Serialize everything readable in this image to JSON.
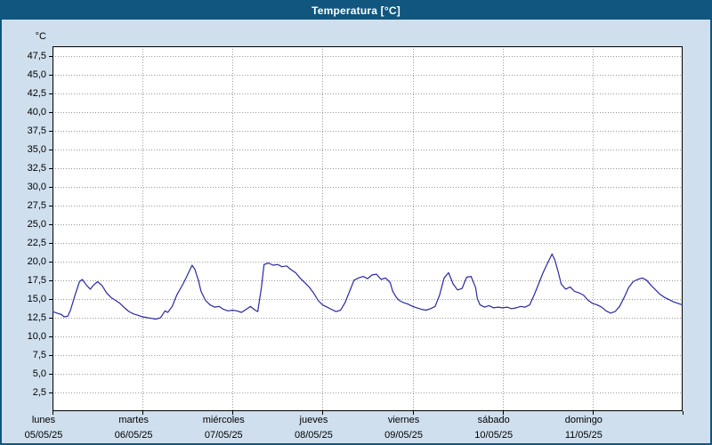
{
  "window": {
    "title": "Temperatura [°C]"
  },
  "colors": {
    "titlebar": "#11567e",
    "background": "#cfdfee",
    "plot_background": "#ffffff",
    "line": "#2929a3",
    "grid": "#9a9a9a",
    "border": "#000000"
  },
  "chart_data": {
    "type": "line",
    "title": "Temperatura [°C]",
    "unit_label": "°C",
    "xlabel": "",
    "ylabel": "°C",
    "ylim": [
      0,
      48.75
    ],
    "y_tick_step": 2.5,
    "grid": "dotted",
    "legend_position": "none",
    "y_ticks": [
      {
        "value": 47.5,
        "label": "47,5"
      },
      {
        "value": 45.0,
        "label": "45,0"
      },
      {
        "value": 42.5,
        "label": "42,5"
      },
      {
        "value": 40.0,
        "label": "40,0"
      },
      {
        "value": 37.5,
        "label": "37,5"
      },
      {
        "value": 35.0,
        "label": "35,0"
      },
      {
        "value": 32.5,
        "label": "32,5"
      },
      {
        "value": 30.0,
        "label": "30,0"
      },
      {
        "value": 27.5,
        "label": "27,5"
      },
      {
        "value": 25.0,
        "label": "25,0"
      },
      {
        "value": 22.5,
        "label": "22,5"
      },
      {
        "value": 20.0,
        "label": "20,0"
      },
      {
        "value": 17.5,
        "label": "17,5"
      },
      {
        "value": 15.0,
        "label": "15,0"
      },
      {
        "value": 12.5,
        "label": "12,5"
      },
      {
        "value": 10.0,
        "label": "10,0"
      },
      {
        "value": 7.5,
        "label": "7,5"
      },
      {
        "value": 5.0,
        "label": "5,0"
      },
      {
        "value": 2.5,
        "label": "2,5"
      }
    ],
    "x_days": [
      {
        "day": "lunes",
        "date": "05/05/25"
      },
      {
        "day": "martes",
        "date": "06/05/25"
      },
      {
        "day": "miércoles",
        "date": "07/05/25"
      },
      {
        "day": "jueves",
        "date": "08/05/25"
      },
      {
        "day": "viernes",
        "date": "09/05/25"
      },
      {
        "day": "sábado",
        "date": "10/05/25"
      },
      {
        "day": "domingo",
        "date": "11/05/25"
      }
    ],
    "series": [
      {
        "name": "Temperatura",
        "points": [
          [
            0.0,
            13.3
          ],
          [
            0.05,
            13.1
          ],
          [
            0.1,
            12.9
          ],
          [
            0.13,
            12.6
          ],
          [
            0.17,
            12.7
          ],
          [
            0.2,
            13.5
          ],
          [
            0.25,
            15.5
          ],
          [
            0.3,
            17.3
          ],
          [
            0.33,
            17.6
          ],
          [
            0.38,
            16.8
          ],
          [
            0.42,
            16.3
          ],
          [
            0.46,
            16.9
          ],
          [
            0.5,
            17.3
          ],
          [
            0.55,
            16.8
          ],
          [
            0.6,
            15.8
          ],
          [
            0.65,
            15.2
          ],
          [
            0.7,
            14.8
          ],
          [
            0.75,
            14.4
          ],
          [
            0.8,
            13.8
          ],
          [
            0.85,
            13.3
          ],
          [
            0.9,
            13.0
          ],
          [
            0.95,
            12.8
          ],
          [
            1.0,
            12.6
          ],
          [
            1.05,
            12.5
          ],
          [
            1.1,
            12.4
          ],
          [
            1.15,
            12.3
          ],
          [
            1.2,
            12.5
          ],
          [
            1.25,
            13.4
          ],
          [
            1.28,
            13.2
          ],
          [
            1.33,
            14.0
          ],
          [
            1.38,
            15.5
          ],
          [
            1.45,
            17.0
          ],
          [
            1.5,
            18.2
          ],
          [
            1.55,
            19.5
          ],
          [
            1.58,
            19.0
          ],
          [
            1.62,
            17.5
          ],
          [
            1.65,
            16.0
          ],
          [
            1.7,
            14.8
          ],
          [
            1.75,
            14.2
          ],
          [
            1.8,
            13.9
          ],
          [
            1.85,
            14.0
          ],
          [
            1.9,
            13.6
          ],
          [
            1.95,
            13.4
          ],
          [
            2.0,
            13.5
          ],
          [
            2.05,
            13.4
          ],
          [
            2.1,
            13.2
          ],
          [
            2.15,
            13.6
          ],
          [
            2.2,
            14.0
          ],
          [
            2.25,
            13.5
          ],
          [
            2.28,
            13.3
          ],
          [
            2.32,
            16.5
          ],
          [
            2.35,
            19.6
          ],
          [
            2.4,
            19.8
          ],
          [
            2.45,
            19.5
          ],
          [
            2.5,
            19.6
          ],
          [
            2.55,
            19.3
          ],
          [
            2.6,
            19.4
          ],
          [
            2.65,
            18.9
          ],
          [
            2.7,
            18.5
          ],
          [
            2.75,
            17.8
          ],
          [
            2.8,
            17.2
          ],
          [
            2.85,
            16.6
          ],
          [
            2.9,
            15.8
          ],
          [
            2.95,
            14.8
          ],
          [
            3.0,
            14.2
          ],
          [
            3.05,
            13.9
          ],
          [
            3.1,
            13.6
          ],
          [
            3.15,
            13.3
          ],
          [
            3.2,
            13.5
          ],
          [
            3.25,
            14.5
          ],
          [
            3.3,
            16.0
          ],
          [
            3.35,
            17.5
          ],
          [
            3.4,
            17.8
          ],
          [
            3.45,
            18.0
          ],
          [
            3.5,
            17.7
          ],
          [
            3.55,
            18.2
          ],
          [
            3.6,
            18.3
          ],
          [
            3.65,
            17.6
          ],
          [
            3.7,
            17.8
          ],
          [
            3.75,
            17.2
          ],
          [
            3.78,
            16.0
          ],
          [
            3.82,
            15.2
          ],
          [
            3.85,
            14.8
          ],
          [
            3.9,
            14.5
          ],
          [
            3.95,
            14.3
          ],
          [
            4.0,
            14.0
          ],
          [
            4.05,
            13.8
          ],
          [
            4.1,
            13.6
          ],
          [
            4.15,
            13.5
          ],
          [
            4.2,
            13.7
          ],
          [
            4.25,
            14.0
          ],
          [
            4.3,
            15.5
          ],
          [
            4.35,
            17.8
          ],
          [
            4.4,
            18.5
          ],
          [
            4.45,
            17.0
          ],
          [
            4.5,
            16.2
          ],
          [
            4.55,
            16.4
          ],
          [
            4.6,
            17.9
          ],
          [
            4.65,
            18.0
          ],
          [
            4.7,
            16.5
          ],
          [
            4.72,
            15.0
          ],
          [
            4.75,
            14.2
          ],
          [
            4.8,
            13.9
          ],
          [
            4.85,
            14.1
          ],
          [
            4.9,
            13.8
          ],
          [
            4.95,
            13.9
          ],
          [
            5.0,
            13.8
          ],
          [
            5.05,
            13.9
          ],
          [
            5.1,
            13.7
          ],
          [
            5.15,
            13.8
          ],
          [
            5.2,
            14.0
          ],
          [
            5.25,
            13.9
          ],
          [
            5.3,
            14.2
          ],
          [
            5.35,
            15.5
          ],
          [
            5.4,
            17.0
          ],
          [
            5.45,
            18.5
          ],
          [
            5.5,
            19.8
          ],
          [
            5.55,
            21.0
          ],
          [
            5.58,
            20.2
          ],
          [
            5.62,
            18.5
          ],
          [
            5.65,
            17.0
          ],
          [
            5.7,
            16.3
          ],
          [
            5.75,
            16.6
          ],
          [
            5.8,
            16.0
          ],
          [
            5.85,
            15.8
          ],
          [
            5.9,
            15.5
          ],
          [
            5.95,
            14.8
          ],
          [
            6.0,
            14.4
          ],
          [
            6.05,
            14.2
          ],
          [
            6.1,
            13.9
          ],
          [
            6.15,
            13.4
          ],
          [
            6.2,
            13.1
          ],
          [
            6.25,
            13.3
          ],
          [
            6.3,
            14.0
          ],
          [
            6.35,
            15.2
          ],
          [
            6.4,
            16.5
          ],
          [
            6.45,
            17.3
          ],
          [
            6.5,
            17.6
          ],
          [
            6.55,
            17.8
          ],
          [
            6.6,
            17.5
          ],
          [
            6.65,
            16.8
          ],
          [
            6.7,
            16.2
          ],
          [
            6.75,
            15.6
          ],
          [
            6.8,
            15.2
          ],
          [
            6.85,
            14.9
          ],
          [
            6.9,
            14.6
          ],
          [
            6.95,
            14.4
          ],
          [
            7.0,
            14.2
          ]
        ]
      }
    ]
  }
}
